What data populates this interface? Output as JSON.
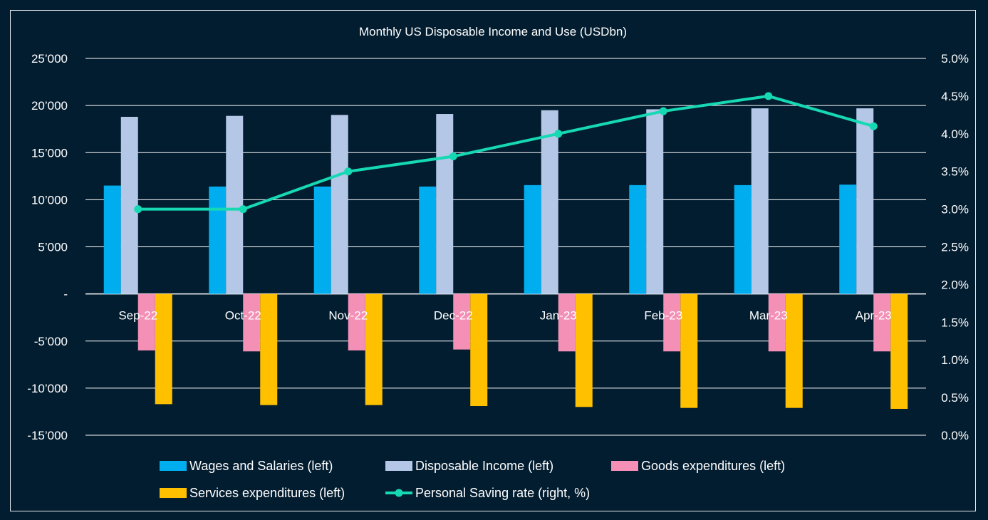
{
  "chart_data": {
    "type": "bar",
    "title": "Monthly US Disposable Income and Use (USDbn)",
    "categories": [
      "Sep-22",
      "Oct-22",
      "Nov-22",
      "Dec-22",
      "Jan-23",
      "Feb-23",
      "Mar-23",
      "Apr-23"
    ],
    "series": [
      {
        "name": "Wages and Salaries (left)",
        "type": "bar",
        "axis": "left",
        "color": "#00aeef",
        "values": [
          11500,
          11400,
          11400,
          11400,
          11550,
          11550,
          11550,
          11600
        ]
      },
      {
        "name": "Disposable Income (left)",
        "type": "bar",
        "axis": "left",
        "color": "#b4c7e7",
        "values": [
          18800,
          18900,
          19000,
          19100,
          19500,
          19600,
          19700,
          19700
        ]
      },
      {
        "name": "Goods expenditures (left)",
        "type": "bar",
        "axis": "left",
        "color": "#f48fb6",
        "values": [
          -6000,
          -6100,
          -6000,
          -5900,
          -6100,
          -6100,
          -6100,
          -6100
        ]
      },
      {
        "name": "Services expenditures (left)",
        "type": "bar",
        "axis": "left",
        "color": "#ffc000",
        "values": [
          -11700,
          -11800,
          -11800,
          -11900,
          -12000,
          -12100,
          -12100,
          -12200
        ]
      },
      {
        "name": "Personal Saving rate (right, %)",
        "type": "line",
        "axis": "right",
        "color": "#16d9b4",
        "values": [
          3.0,
          3.0,
          3.5,
          3.7,
          4.0,
          4.3,
          4.5,
          4.1
        ]
      }
    ],
    "left_axis": {
      "ylim": [
        -15000,
        25000
      ],
      "ticks": [
        25000,
        20000,
        15000,
        10000,
        5000,
        0,
        -5000,
        -10000,
        -15000
      ],
      "tick_labels": [
        "25’000",
        "20’000",
        "15’000",
        "10’000",
        "5’000",
        "-",
        "-5’000",
        "-10’000",
        "-15’000"
      ]
    },
    "right_axis": {
      "ylim": [
        0,
        5
      ],
      "ticks": [
        5.0,
        4.5,
        4.0,
        3.5,
        3.0,
        2.5,
        2.0,
        1.5,
        1.0,
        0.5,
        0.0
      ],
      "tick_labels": [
        "5.0%",
        "4.5%",
        "4.0%",
        "3.5%",
        "3.0%",
        "2.5%",
        "2.0%",
        "1.5%",
        "1.0%",
        "0.5%",
        "0.0%"
      ]
    },
    "grid": true,
    "legend": "bottom"
  },
  "colors": {
    "background": "#031d30",
    "gridline": "#ffffff",
    "text": "#ffffff"
  }
}
